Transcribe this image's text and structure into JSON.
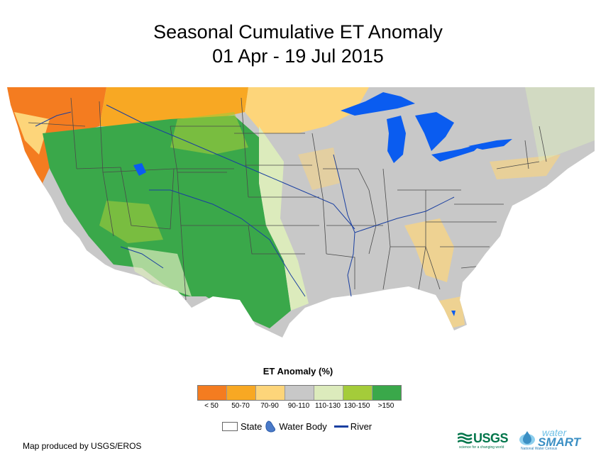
{
  "map": {
    "title_line1": "Seasonal Cumulative ET Anomaly",
    "title_line2": "01 Apr - 19 Jul 2015",
    "legend_title": "ET Anomaly (%)",
    "classes": [
      {
        "label": "< 50",
        "color": "#f47c20"
      },
      {
        "label": "50-70",
        "color": "#f8a823"
      },
      {
        "label": "70-90",
        "color": "#fdd57a"
      },
      {
        "label": "90-110",
        "color": "#c8c8c8"
      },
      {
        "label": "110-130",
        "color": "#dcebbc"
      },
      {
        "label": "130-150",
        "color": "#a4cc3a"
      },
      {
        "label": ">150",
        "color": "#3aa84a"
      }
    ],
    "layers": {
      "state": "State",
      "water_body": "Water Body",
      "river": "River"
    },
    "colors": {
      "water": "#0a5cf0",
      "river": "#1a3fa0",
      "state_line": "#4a4a4a",
      "no_data": "#c8c8c8"
    },
    "credit": "Map produced by USGS/EROS",
    "logos": {
      "usgs": "USGS",
      "usgs_tagline": "science for a changing world",
      "watersmart_top": "water",
      "watersmart_bottom": "SMART",
      "watersmart_sub": "National Water Census"
    }
  }
}
